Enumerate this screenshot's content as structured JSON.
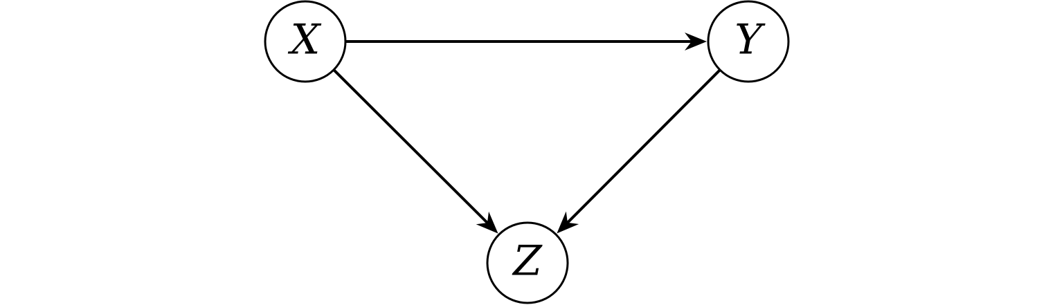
{
  "diagram": {
    "nodes": [
      {
        "id": "X",
        "label": "X"
      },
      {
        "id": "Y",
        "label": "Y"
      },
      {
        "id": "Z",
        "label": "Z"
      }
    ],
    "edges": [
      {
        "from": "X",
        "to": "Y"
      },
      {
        "from": "X",
        "to": "Z"
      },
      {
        "from": "Y",
        "to": "Z"
      }
    ],
    "colors": {
      "stroke": "#000000",
      "fill": "#ffffff"
    }
  }
}
